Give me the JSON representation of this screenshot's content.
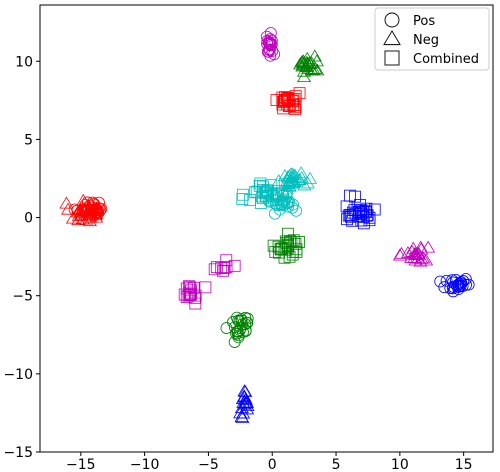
{
  "chart_data": {
    "type": "scatter",
    "title": "",
    "xlabel": "",
    "ylabel": "",
    "xlim": [
      -18.2,
      17.3
    ],
    "ylim": [
      -15.0,
      13.6
    ],
    "xticks": [
      -15,
      -10,
      -5,
      0,
      5,
      10,
      15
    ],
    "yticks": [
      -15,
      -10,
      -5,
      0,
      5,
      10
    ],
    "grid": false,
    "legend_position": "top-right",
    "marker_style": "hollow",
    "legend": [
      {
        "label": "Pos",
        "marker": "circle"
      },
      {
        "label": "Neg",
        "marker": "triangle"
      },
      {
        "label": "Combined",
        "marker": "square"
      }
    ],
    "clusters": [
      {
        "color": "#ff0000",
        "marker": "circle",
        "center": [
          -14.2,
          0.6
        ],
        "spread": [
          1.1,
          0.45
        ],
        "count": 30
      },
      {
        "color": "#ff0000",
        "marker": "triangle",
        "center": [
          -14.8,
          0.3
        ],
        "spread": [
          1.0,
          0.55
        ],
        "count": 30
      },
      {
        "color": "#ff0000",
        "marker": "square",
        "center": [
          1.3,
          7.4
        ],
        "spread": [
          0.75,
          0.6
        ],
        "count": 28
      },
      {
        "color": "#bf00bf",
        "marker": "circle",
        "center": [
          -0.2,
          11.1
        ],
        "spread": [
          0.35,
          0.65
        ],
        "count": 20
      },
      {
        "color": "#bf00bf",
        "marker": "triangle",
        "center": [
          11.2,
          -2.4
        ],
        "spread": [
          0.9,
          0.55
        ],
        "count": 22
      },
      {
        "color": "#bf00bf",
        "marker": "square",
        "center": [
          -6.3,
          -4.7
        ],
        "spread": [
          0.6,
          0.55
        ],
        "count": 16
      },
      {
        "color": "#bf00bf",
        "marker": "square",
        "center": [
          -3.6,
          -3.3
        ],
        "spread": [
          1.1,
          0.4
        ],
        "count": 8
      },
      {
        "color": "#008000",
        "marker": "circle",
        "center": [
          -2.5,
          -6.9
        ],
        "spread": [
          0.7,
          0.75
        ],
        "count": 26
      },
      {
        "color": "#008000",
        "marker": "triangle",
        "center": [
          2.8,
          9.8
        ],
        "spread": [
          0.75,
          0.7
        ],
        "count": 26
      },
      {
        "color": "#008000",
        "marker": "square",
        "center": [
          1.3,
          -2.0
        ],
        "spread": [
          1.0,
          0.65
        ],
        "count": 26
      },
      {
        "color": "#00bfbf",
        "marker": "circle",
        "center": [
          0.9,
          1.0
        ],
        "spread": [
          0.85,
          0.6
        ],
        "count": 30
      },
      {
        "color": "#00bfbf",
        "marker": "triangle",
        "center": [
          1.7,
          2.4
        ],
        "spread": [
          0.9,
          0.4
        ],
        "count": 28
      },
      {
        "color": "#00bfbf",
        "marker": "square",
        "center": [
          -0.5,
          1.6
        ],
        "spread": [
          1.3,
          0.9
        ],
        "count": 28
      },
      {
        "color": "#0000ff",
        "marker": "circle",
        "center": [
          14.5,
          -4.3
        ],
        "spread": [
          1.0,
          0.5
        ],
        "count": 24
      },
      {
        "color": "#0000ff",
        "marker": "triangle",
        "center": [
          -2.2,
          -12.0
        ],
        "spread": [
          0.35,
          0.85
        ],
        "count": 20
      },
      {
        "color": "#0000ff",
        "marker": "square",
        "center": [
          6.8,
          0.4
        ],
        "spread": [
          1.2,
          0.65
        ],
        "count": 30
      }
    ]
  }
}
